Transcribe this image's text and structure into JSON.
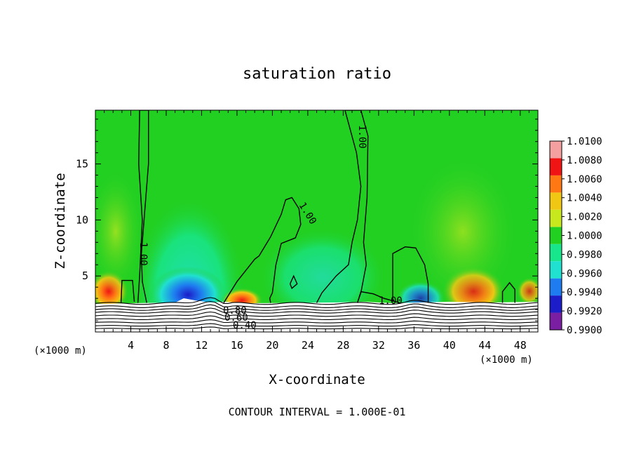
{
  "chart_data": {
    "type": "heatmap",
    "title": "saturation ratio",
    "xlabel": "X-coordinate",
    "ylabel": "Z-coordinate",
    "x_unit_left": "(×1000 m)",
    "x_unit_right": "(×1000 m)",
    "xlim": [
      0,
      50
    ],
    "ylim": [
      0,
      19.8
    ],
    "x_ticks": [
      4,
      8,
      12,
      16,
      20,
      24,
      28,
      32,
      36,
      40,
      44,
      48
    ],
    "x_tick_labels": [
      "4",
      "8",
      "12",
      "16",
      "20",
      "24",
      "28",
      "32",
      "36",
      "40",
      "44",
      "48"
    ],
    "y_ticks": [
      5,
      10,
      15
    ],
    "y_tick_labels": [
      "5",
      "10",
      "15"
    ],
    "footer": "CONTOUR INTERVAL = 1.000E-01",
    "colorbar": {
      "levels": [
        0.99,
        0.992,
        0.994,
        0.996,
        0.998,
        1.0,
        1.002,
        1.004,
        1.006,
        1.008,
        1.01
      ],
      "labels": [
        "1.0100",
        "1.0080",
        "1.0060",
        "1.0040",
        "1.0020",
        "1.0000",
        "0.9980",
        "0.9960",
        "0.9940",
        "0.9920",
        "0.9900"
      ],
      "colors": [
        "#7a1fa2",
        "#1c1cc8",
        "#1e7cf0",
        "#20e0d0",
        "#18e68c",
        "#22d022",
        "#c8e81e",
        "#f0c814",
        "#ff7814",
        "#f01414",
        "#f5a0a0"
      ]
    },
    "background_value": 1.0,
    "contour_labels": [
      "1.00",
      "1.00",
      "1.00",
      "1.00",
      "0.80",
      "0.60",
      "0.40"
    ],
    "contours": [
      {
        "level": 1.0,
        "label": "1.00",
        "points": [
          [
            4.8,
            2.6
          ],
          [
            5.0,
            5
          ],
          [
            5.3,
            10
          ],
          [
            4.9,
            15
          ],
          [
            5.0,
            19.8
          ],
          [
            6.0,
            19.8
          ],
          [
            6.0,
            15
          ],
          [
            5.5,
            10
          ],
          [
            5.2,
            7
          ],
          [
            5.3,
            4.5
          ],
          [
            5.8,
            2.6
          ]
        ]
      },
      {
        "level": 1.0,
        "label": "1.00",
        "points": [
          [
            2.9,
            2.6
          ],
          [
            3.0,
            4.6
          ],
          [
            4.2,
            4.6
          ],
          [
            4.4,
            2.7
          ]
        ]
      },
      {
        "level": 1.0,
        "label": "1.00",
        "points": [
          [
            14.5,
            2.6
          ],
          [
            16.0,
            4.5
          ],
          [
            18.0,
            6.5
          ],
          [
            18.5,
            6.8
          ],
          [
            19.8,
            8.5
          ],
          [
            21.0,
            10.5
          ],
          [
            21.5,
            11.8
          ],
          [
            22.2,
            12.0
          ],
          [
            23.0,
            11.0
          ],
          [
            23.2,
            9.6
          ],
          [
            22.6,
            8.4
          ],
          [
            21.0,
            7.9
          ],
          [
            20.4,
            6.0
          ],
          [
            20.0,
            3.5
          ],
          [
            19.7,
            3.0
          ],
          [
            19.8,
            2.6
          ]
        ]
      },
      {
        "level": 1.0,
        "label": "1.00",
        "points": [
          [
            22.0,
            4.3
          ],
          [
            22.4,
            5.0
          ],
          [
            22.8,
            4.3
          ],
          [
            22.2,
            3.9
          ],
          [
            22.0,
            4.3
          ]
        ]
      },
      {
        "level": 1.0,
        "label": "1.00",
        "points": [
          [
            25.0,
            2.6
          ],
          [
            25.6,
            3.5
          ],
          [
            27.2,
            5.0
          ],
          [
            28.6,
            6.0
          ],
          [
            29.0,
            8.0
          ],
          [
            29.6,
            10.0
          ],
          [
            30.0,
            13.0
          ],
          [
            29.5,
            16.0
          ],
          [
            28.2,
            19.8
          ],
          [
            30.0,
            19.8
          ],
          [
            30.8,
            17.5
          ],
          [
            30.7,
            12.0
          ],
          [
            30.3,
            8.0
          ],
          [
            30.6,
            6.0
          ],
          [
            30.0,
            3.5
          ],
          [
            29.6,
            2.6
          ]
        ]
      },
      {
        "level": 1.0,
        "label": "1.00",
        "points": [
          [
            29.6,
            2.6
          ],
          [
            30.0,
            3.6
          ],
          [
            31.4,
            3.4
          ],
          [
            32.6,
            3.0
          ],
          [
            34.4,
            2.6
          ]
        ]
      },
      {
        "level": 1.0,
        "label": "1.00",
        "points": [
          [
            33.6,
            2.7
          ],
          [
            33.6,
            7.0
          ],
          [
            35.0,
            7.6
          ],
          [
            36.2,
            7.5
          ],
          [
            37.2,
            6.0
          ],
          [
            37.6,
            4.3
          ],
          [
            37.6,
            2.6
          ]
        ]
      },
      {
        "level": 1.0,
        "label": "1.00",
        "points": [
          [
            46.0,
            2.6
          ],
          [
            46.0,
            3.6
          ],
          [
            46.8,
            4.4
          ],
          [
            47.4,
            3.8
          ],
          [
            47.4,
            2.6
          ]
        ]
      }
    ]
  }
}
